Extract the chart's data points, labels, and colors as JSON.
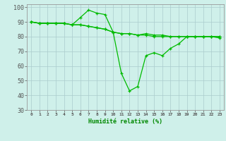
{
  "title": "",
  "xlabel": "Humidité relative (%)",
  "ylabel": "",
  "background_color": "#cff0ea",
  "grid_color": "#aacccc",
  "line_color": "#00bb00",
  "xlim": [
    -0.5,
    23.5
  ],
  "ylim": [
    30,
    102
  ],
  "yticks": [
    30,
    40,
    50,
    60,
    70,
    80,
    90,
    100
  ],
  "xticks": [
    0,
    1,
    2,
    3,
    4,
    5,
    6,
    7,
    8,
    9,
    10,
    11,
    12,
    13,
    14,
    15,
    16,
    17,
    18,
    19,
    20,
    21,
    22,
    23
  ],
  "xtick_labels": [
    "0",
    "1",
    "2",
    "3",
    "4",
    "5",
    "6",
    "7",
    "8",
    "9",
    "10",
    "11",
    "12",
    "13",
    "14",
    "15",
    "16",
    "17",
    "18",
    "19",
    "20",
    "21",
    "22",
    "23"
  ],
  "series": [
    [
      90,
      89,
      89,
      89,
      89,
      88,
      88,
      87,
      86,
      85,
      83,
      82,
      82,
      81,
      81,
      80,
      80,
      80,
      80,
      80,
      80,
      80,
      80,
      80
    ],
    [
      90,
      89,
      89,
      89,
      89,
      88,
      93,
      98,
      96,
      95,
      83,
      55,
      43,
      46,
      67,
      69,
      67,
      72,
      75,
      80,
      80,
      80,
      80,
      79
    ],
    [
      90,
      89,
      89,
      89,
      89,
      88,
      88,
      87,
      86,
      85,
      83,
      82,
      82,
      81,
      82,
      81,
      81,
      80,
      80,
      80,
      80,
      80,
      80,
      80
    ]
  ],
  "xlabel_fontsize": 6,
  "ytick_fontsize": 6,
  "xtick_fontsize": 4.5,
  "linewidth": 0.9,
  "markersize": 2.5
}
